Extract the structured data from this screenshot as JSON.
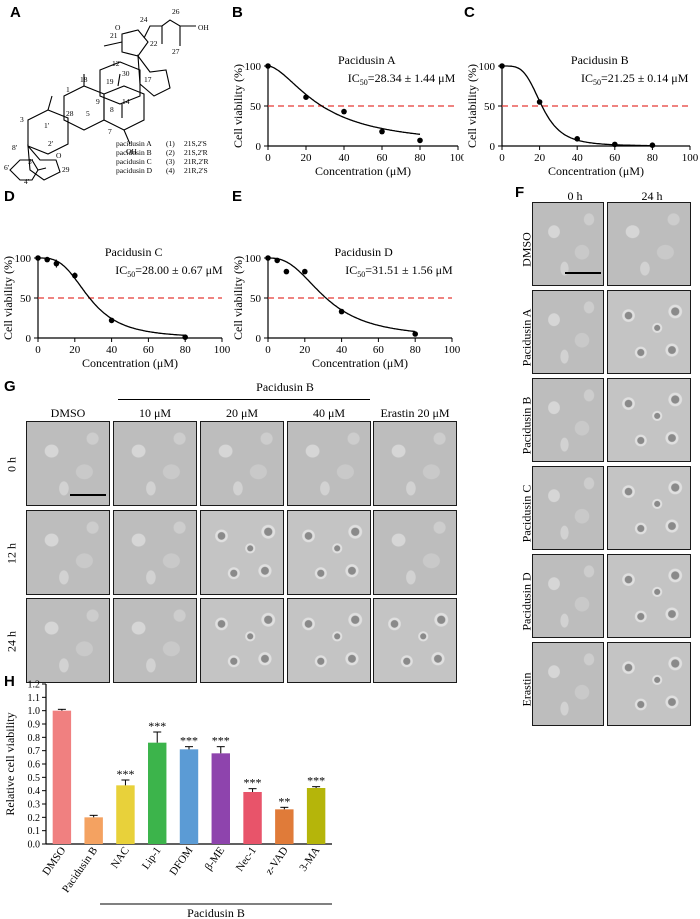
{
  "panel_labels": {
    "A": "A",
    "B": "B",
    "C": "C",
    "D": "D",
    "E": "E",
    "F": "F",
    "G": "G",
    "H": "H"
  },
  "structure": {
    "atoms": [
      "24",
      "26",
      "OH",
      "21",
      "O",
      "22",
      "27",
      "12",
      "30",
      "1",
      "18",
      "19",
      "17",
      "9",
      "28",
      "3",
      "5",
      "14",
      "8",
      "7",
      "OH",
      "8'",
      "3'",
      "1'",
      "2'",
      "O",
      "29",
      "6'",
      "4'"
    ],
    "compounds": [
      {
        "name": "pacidusin A",
        "num": "(1)",
        "config": "21S,2'S"
      },
      {
        "name": "pacidusin B",
        "num": "(2)",
        "config": "21S,2'R"
      },
      {
        "name": "pacidusin C",
        "num": "(3)",
        "config": "21R,2'R"
      },
      {
        "name": "pacidusin D",
        "num": "(4)",
        "config": "21R,2'S"
      }
    ]
  },
  "curves": {
    "ylabel": "Cell viability (%)",
    "xlabel": "Concentration (μM)",
    "x_ticks": [
      "0",
      "20",
      "40",
      "60",
      "80",
      "100"
    ],
    "y_ticks": [
      "0",
      "50",
      "100"
    ]
  },
  "chart_data": [
    {
      "type": "scatter",
      "panel": "B",
      "title": "Pacidusin A",
      "ic50_label": "IC",
      "ic50_sub": "50",
      "ic50_value": "=28.34 ± 1.44 μM",
      "x": [
        0,
        20,
        40,
        60,
        80
      ],
      "y": [
        100,
        61,
        43,
        18,
        7
      ],
      "yerr": [
        1,
        2,
        2,
        1,
        1
      ],
      "xlim": [
        0,
        100
      ],
      "ylim": [
        0,
        100
      ],
      "threshold": 50,
      "ic50": 28.34,
      "hill": 1.7
    },
    {
      "type": "scatter",
      "panel": "C",
      "title": "Pacidusin B",
      "ic50_label": "IC",
      "ic50_sub": "50",
      "ic50_value": "=21.25 ± 0.14 μM",
      "x": [
        0,
        20,
        40,
        60,
        80
      ],
      "y": [
        100,
        55,
        9,
        2,
        1
      ],
      "yerr": [
        2,
        2,
        1,
        1,
        1
      ],
      "xlim": [
        0,
        100
      ],
      "ylim": [
        0,
        100
      ],
      "threshold": 50,
      "ic50": 21.25,
      "hill": 4
    },
    {
      "type": "scatter",
      "panel": "D",
      "title": "Pacidusin C",
      "ic50_label": "IC",
      "ic50_sub": "50",
      "ic50_value": "=28.00 ± 0.67 μM",
      "x": [
        0,
        5,
        10,
        20,
        40,
        80
      ],
      "y": [
        100,
        98,
        93,
        78,
        22,
        1
      ],
      "yerr": [
        2,
        3,
        5,
        4,
        1,
        1
      ],
      "xlim": [
        0,
        100
      ],
      "ylim": [
        0,
        100
      ],
      "threshold": 50,
      "ic50": 28.0,
      "hill": 3.2
    },
    {
      "type": "scatter",
      "panel": "E",
      "title": "Pacidusin D",
      "ic50_label": "IC",
      "ic50_sub": "50",
      "ic50_value": "=31.51 ± 1.56 μM",
      "x": [
        0,
        5,
        10,
        20,
        40,
        80
      ],
      "y": [
        100,
        97,
        83,
        83,
        33,
        5
      ],
      "yerr": [
        2,
        3,
        2,
        2,
        1,
        1
      ],
      "xlim": [
        0,
        100
      ],
      "ylim": [
        0,
        100
      ],
      "threshold": 50,
      "ic50": 31.51,
      "hill": 2.6
    },
    {
      "type": "bar",
      "panel": "H",
      "ylabel": "Relative cell viability",
      "ylim": [
        0,
        1.2
      ],
      "y_ticks": [
        "0.0",
        "0.1",
        "0.2",
        "0.3",
        "0.4",
        "0.5",
        "0.6",
        "0.7",
        "0.8",
        "0.9",
        "1.0",
        "1.1",
        "1.2"
      ],
      "categories": [
        "DMSO",
        "Pacidusin B",
        "NAC",
        "Lip-1",
        "DFOM",
        "β-ME",
        "Nec-1",
        "z-VAD",
        "3-MA"
      ],
      "values": [
        1.0,
        0.2,
        0.44,
        0.76,
        0.71,
        0.68,
        0.39,
        0.26,
        0.42
      ],
      "errors": [
        0.01,
        0.015,
        0.04,
        0.08,
        0.02,
        0.05,
        0.025,
        0.015,
        0.01
      ],
      "significance": [
        "",
        "",
        "***",
        "***",
        "***",
        "***",
        "***",
        "**",
        "***"
      ],
      "colors": [
        "#f08080",
        "#f4a261",
        "#e8d13a",
        "#3cb44b",
        "#5b9bd5",
        "#8e44ad",
        "#e8546a",
        "#e07b39",
        "#b5b50a"
      ],
      "group_label": "Pacidusin B"
    }
  ],
  "panelF": {
    "col_labels": [
      "0 h",
      "24 h"
    ],
    "row_labels": [
      "DMSO",
      "Pacidusin A",
      "Pacidusin B",
      "Pacidusin C",
      "Pacidusin D",
      "Erastin"
    ]
  },
  "panelG": {
    "group_label": "Pacidusin B",
    "col_labels": [
      "DMSO",
      "10 μM",
      "20 μM",
      "40 μM",
      "Erastin 20 μM"
    ],
    "row_labels": [
      "0 h",
      "12 h",
      "24 h"
    ]
  }
}
